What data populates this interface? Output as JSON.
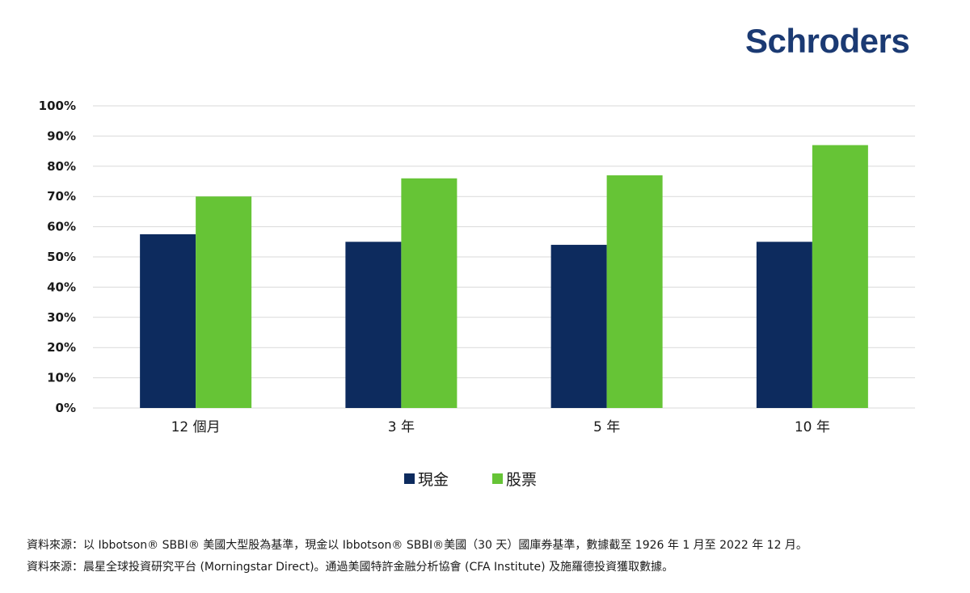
{
  "brand": {
    "name": "Schroders",
    "color": "#1b3a73"
  },
  "chart_data": {
    "type": "bar",
    "categories": [
      "12 個月",
      "3 年",
      "5 年",
      "10 年"
    ],
    "series": [
      {
        "name": "現金",
        "color": "#0d2b5e",
        "values": [
          57.5,
          55,
          54,
          55
        ]
      },
      {
        "name": "股票",
        "color": "#66c436",
        "values": [
          70,
          76,
          77,
          87
        ]
      }
    ],
    "ylim": [
      0,
      100
    ],
    "yticks": [
      "0%",
      "10%",
      "20%",
      "30%",
      "40%",
      "50%",
      "60%",
      "70%",
      "80%",
      "90%",
      "100%"
    ],
    "grid": true,
    "legend_position": "bottom-center",
    "title": "",
    "xlabel": "",
    "ylabel": ""
  },
  "sources": [
    "資料來源：以 Ibbotson® SBBI® 美國大型股為基準，現金以 Ibbotson® SBBI®美國（30 天）國庫券基準，數據截至 1926 年 1 月至 2022 年 12 月。",
    "資料來源：晨星全球投資研究平台 (Morningstar Direct)。通過美國特許金融分析協會 (CFA Institute) 及施羅德投資獲取數據。"
  ]
}
